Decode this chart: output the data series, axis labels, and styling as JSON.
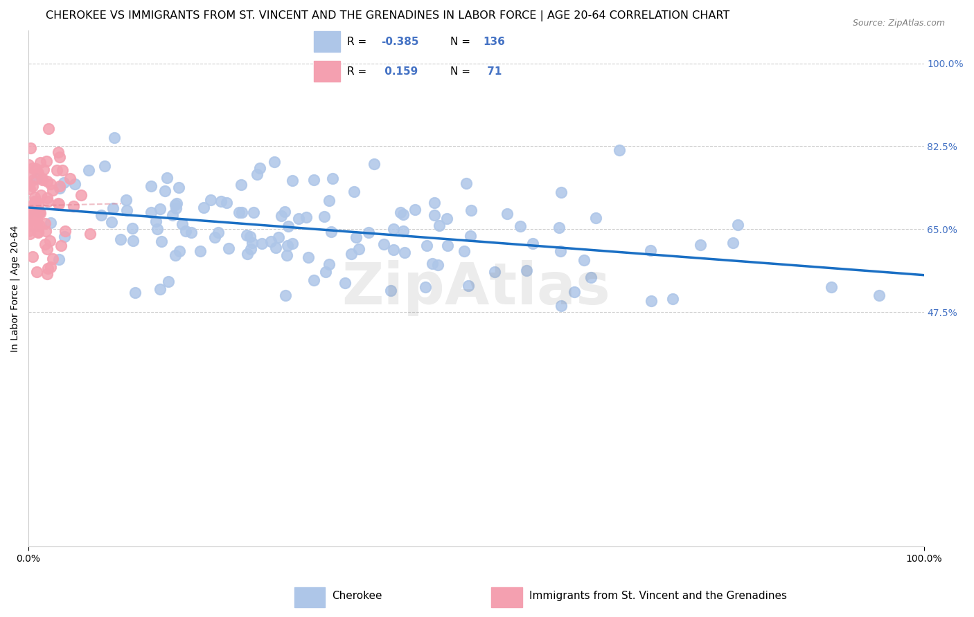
{
  "title": "CHEROKEE VS IMMIGRANTS FROM ST. VINCENT AND THE GRENADINES IN LABOR FORCE | AGE 20-64 CORRELATION CHART",
  "source": "Source: ZipAtlas.com",
  "ylabel": "In Labor Force | Age 20-64",
  "x_tick_labels": [
    "0.0%",
    "100.0%"
  ],
  "y_tick_values": [
    0.475,
    0.65,
    0.825,
    1.0
  ],
  "y_tick_labels": [
    "47.5%",
    "65.0%",
    "82.5%",
    "100.0%"
  ],
  "xlim": [
    0.0,
    1.0
  ],
  "ylim_min": -0.02,
  "ylim_max": 1.07,
  "blue_scatter_seed": 42,
  "pink_scatter_seed": 7,
  "blue_R": -0.385,
  "blue_N": 136,
  "pink_R": 0.159,
  "pink_N": 71,
  "blue_color": "#aec6e8",
  "pink_color": "#f4a0b0",
  "blue_line_color": "#1a6fc4",
  "pink_line_color": "#e08090",
  "scatter_size": 120,
  "background_color": "#ffffff",
  "grid_color": "#cccccc",
  "axis_color": "#cccccc",
  "title_fontsize": 11.5,
  "label_fontsize": 10,
  "tick_fontsize": 10,
  "tick_color": "#4472c4",
  "watermark_text": "ZipAtlas",
  "watermark_alpha": 0.15,
  "legend_blue_R": "-0.385",
  "legend_blue_N": "136",
  "legend_pink_R": " 0.159",
  "legend_pink_N": " 71",
  "bottom_label_blue": "Cherokee",
  "bottom_label_pink": "Immigrants from St. Vincent and the Grenadines"
}
